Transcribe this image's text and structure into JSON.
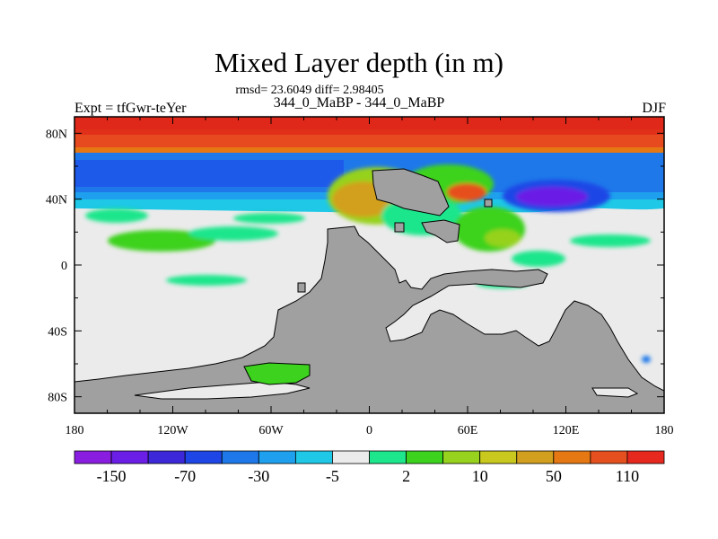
{
  "title": "Mixed Layer depth (in m)",
  "subtitle": "rmsd= 23.6049 diff= 2.98405",
  "left_string": "Expt = tfGwr-teYer",
  "center_string": "344_0_MaBP - 344_0_MaBP",
  "right_string": "DJF",
  "colors": {
    "land": "#a0a0a0",
    "near_zero": "#ebebeb",
    "arctic": "#e0301a"
  },
  "map": {
    "lon_ticks": [
      "180",
      "120W",
      "60W",
      "0",
      "60E",
      "120E",
      "180"
    ],
    "lat_ticks": [
      "80N",
      "40N",
      "0",
      "40S",
      "80S"
    ],
    "lon_range": [
      -180,
      180
    ],
    "lat_range": [
      -90,
      90
    ]
  },
  "colorbar": {
    "labels": [
      "-150",
      "-70",
      "-30",
      "-5",
      "2",
      "10",
      "50",
      "110"
    ],
    "colors": [
      "#8a1ee0",
      "#6a1ee6",
      "#3c28d8",
      "#1e46e6",
      "#1e78ea",
      "#1ea0ee",
      "#1ec8e6",
      "#ebebeb",
      "#1ee68c",
      "#3cd21e",
      "#96d21e",
      "#c8c81e",
      "#d2a01e",
      "#e67814",
      "#e6501e",
      "#e6281e"
    ]
  }
}
